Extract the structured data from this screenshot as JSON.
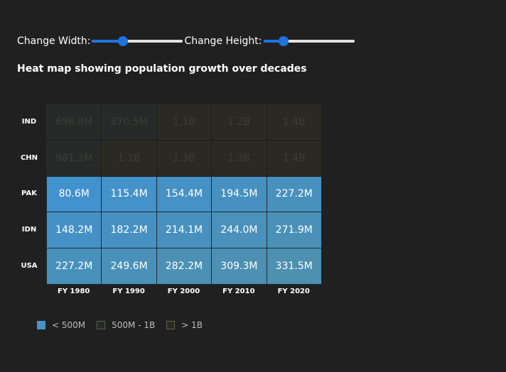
{
  "controls": {
    "width_label": "Change Width:",
    "width_value": 0.34,
    "height_label": "Change Height:",
    "height_value": 0.22,
    "accent_color": "#1e74e0"
  },
  "chart_data": {
    "type": "heatmap",
    "title": "Heat map showing population growth over decades",
    "xlabel": "",
    "ylabel": "",
    "rows": [
      "IND",
      "CHN",
      "PAK",
      "IDN",
      "USA"
    ],
    "columns": [
      "FY 1980",
      "FY 1990",
      "FY 2000",
      "FY 2010",
      "FY 2020"
    ],
    "values": [
      [
        "696.8M",
        "870.5M",
        "1.1B",
        "1.2B",
        "1.4B"
      ],
      [
        "981.2M",
        "1.1B",
        "1.3B",
        "1.3B",
        "1.4B"
      ],
      [
        "80.6M",
        "115.4M",
        "154.4M",
        "194.5M",
        "227.2M"
      ],
      [
        "148.2M",
        "182.2M",
        "214.1M",
        "244.0M",
        "271.9M"
      ],
      [
        "227.2M",
        "249.6M",
        "282.2M",
        "309.3M",
        "331.5M"
      ]
    ],
    "legend_placement": "bottom-left",
    "legend": [
      {
        "label": "< 500M",
        "color": "#4a94c4"
      },
      {
        "label": "500M - 1B",
        "color": "#5b5e57"
      },
      {
        "label": "> 1B",
        "color": "#6b6142"
      }
    ]
  }
}
